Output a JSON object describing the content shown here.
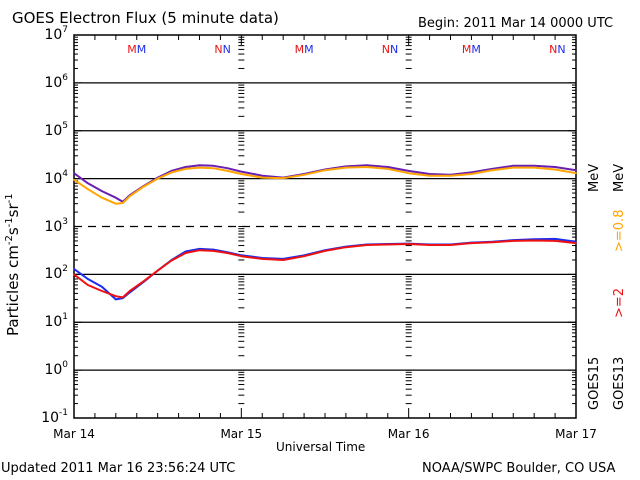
{
  "header": {
    "title": "GOES Electron Flux (5 minute data)",
    "begin": "Begin: 2011 Mar 14 0000 UTC"
  },
  "footer": {
    "updated": "Updated 2011 Mar 16 23:56:24 UTC",
    "source": "NOAA/SWPC Boulder, CO USA"
  },
  "legend": {
    "goes15": "GOES15",
    "goes13": "GOES13",
    "ge2_label": ">=2",
    "ge2_unit": "MeV",
    "ge08_label": ">=0.8",
    "ge08_unit": "MeV",
    "colors": {
      "goes15_ge08": "#6a1fb0",
      "goes13_ge08": "#ffa500",
      "goes15_ge2": "#1b2cf0",
      "goes13_ge2": "#ee1111"
    }
  },
  "markers": {
    "m_label": "M",
    "n_label": "N",
    "list": [
      {
        "label": "M",
        "hour": 8.5
      },
      {
        "label": "N",
        "hour": 21
      },
      {
        "label": "M",
        "hour": 32.5
      },
      {
        "label": "N",
        "hour": 45
      },
      {
        "label": "M",
        "hour": 56.5
      },
      {
        "label": "N",
        "hour": 69
      }
    ]
  },
  "chart_data": {
    "type": "line",
    "title": "GOES Electron Flux (5 minute data)",
    "xlabel": "Universal Time",
    "ylabel": "Particles cm⁻²s⁻¹sr⁻¹",
    "yscale": "log",
    "ylim": [
      0.1,
      10000000
    ],
    "xlim_hours": [
      0,
      72
    ],
    "x_tick_labels": [
      "Mar 14",
      "Mar 15",
      "Mar 16",
      "Mar 17"
    ],
    "y_tick_labels": [
      {
        "base": "10",
        "exp": "7"
      },
      {
        "base": "10",
        "exp": "6"
      },
      {
        "base": "10",
        "exp": "5"
      },
      {
        "base": "10",
        "exp": "4"
      },
      {
        "base": "10",
        "exp": "3"
      },
      {
        "base": "10",
        "exp": "2"
      },
      {
        "base": "10",
        "exp": "1"
      },
      {
        "base": "10",
        "exp": "0"
      },
      {
        "base": "10",
        "exp": "-1"
      }
    ],
    "threshold_line": 1000,
    "x_hours": [
      0,
      2,
      4,
      6,
      7,
      8,
      10,
      12,
      14,
      16,
      18,
      20,
      22,
      24,
      27,
      30,
      33,
      36,
      39,
      42,
      45,
      48,
      51,
      54,
      57,
      60,
      63,
      66,
      69,
      72
    ],
    "series": [
      {
        "name": "GOES15 >=0.8 MeV",
        "color": "#6a1fb0",
        "values": [
          13000,
          8000,
          5500,
          4000,
          3300,
          4500,
          7000,
          10500,
          14500,
          17500,
          19000,
          18500,
          16500,
          14000,
          11500,
          10500,
          12500,
          15500,
          18000,
          19000,
          17500,
          14500,
          12500,
          12000,
          13500,
          16000,
          18500,
          18500,
          17500,
          15000
        ]
      },
      {
        "name": "GOES13 >=0.8 MeV",
        "color": "#ffa500",
        "values": [
          9500,
          6000,
          4000,
          3000,
          3100,
          4300,
          6800,
          10000,
          13500,
          16000,
          17000,
          16500,
          14500,
          12500,
          10500,
          10200,
          12000,
          15000,
          17000,
          17500,
          16000,
          13000,
          11500,
          11500,
          12500,
          15000,
          17000,
          17000,
          15500,
          13000
        ]
      },
      {
        "name": "GOES15 >=2 MeV",
        "color": "#1b2cf0",
        "values": [
          130,
          80,
          55,
          30,
          32,
          42,
          70,
          120,
          200,
          300,
          340,
          330,
          290,
          250,
          220,
          210,
          250,
          320,
          380,
          420,
          430,
          440,
          420,
          420,
          460,
          480,
          520,
          540,
          550,
          480
        ]
      },
      {
        "name": "GOES13 >=2 MeV",
        "color": "#ee1111",
        "values": [
          100,
          60,
          45,
          35,
          33,
          45,
          72,
          120,
          195,
          280,
          320,
          310,
          280,
          240,
          210,
          200,
          240,
          310,
          370,
          410,
          420,
          430,
          410,
          410,
          450,
          470,
          500,
          510,
          500,
          450
        ]
      }
    ]
  }
}
